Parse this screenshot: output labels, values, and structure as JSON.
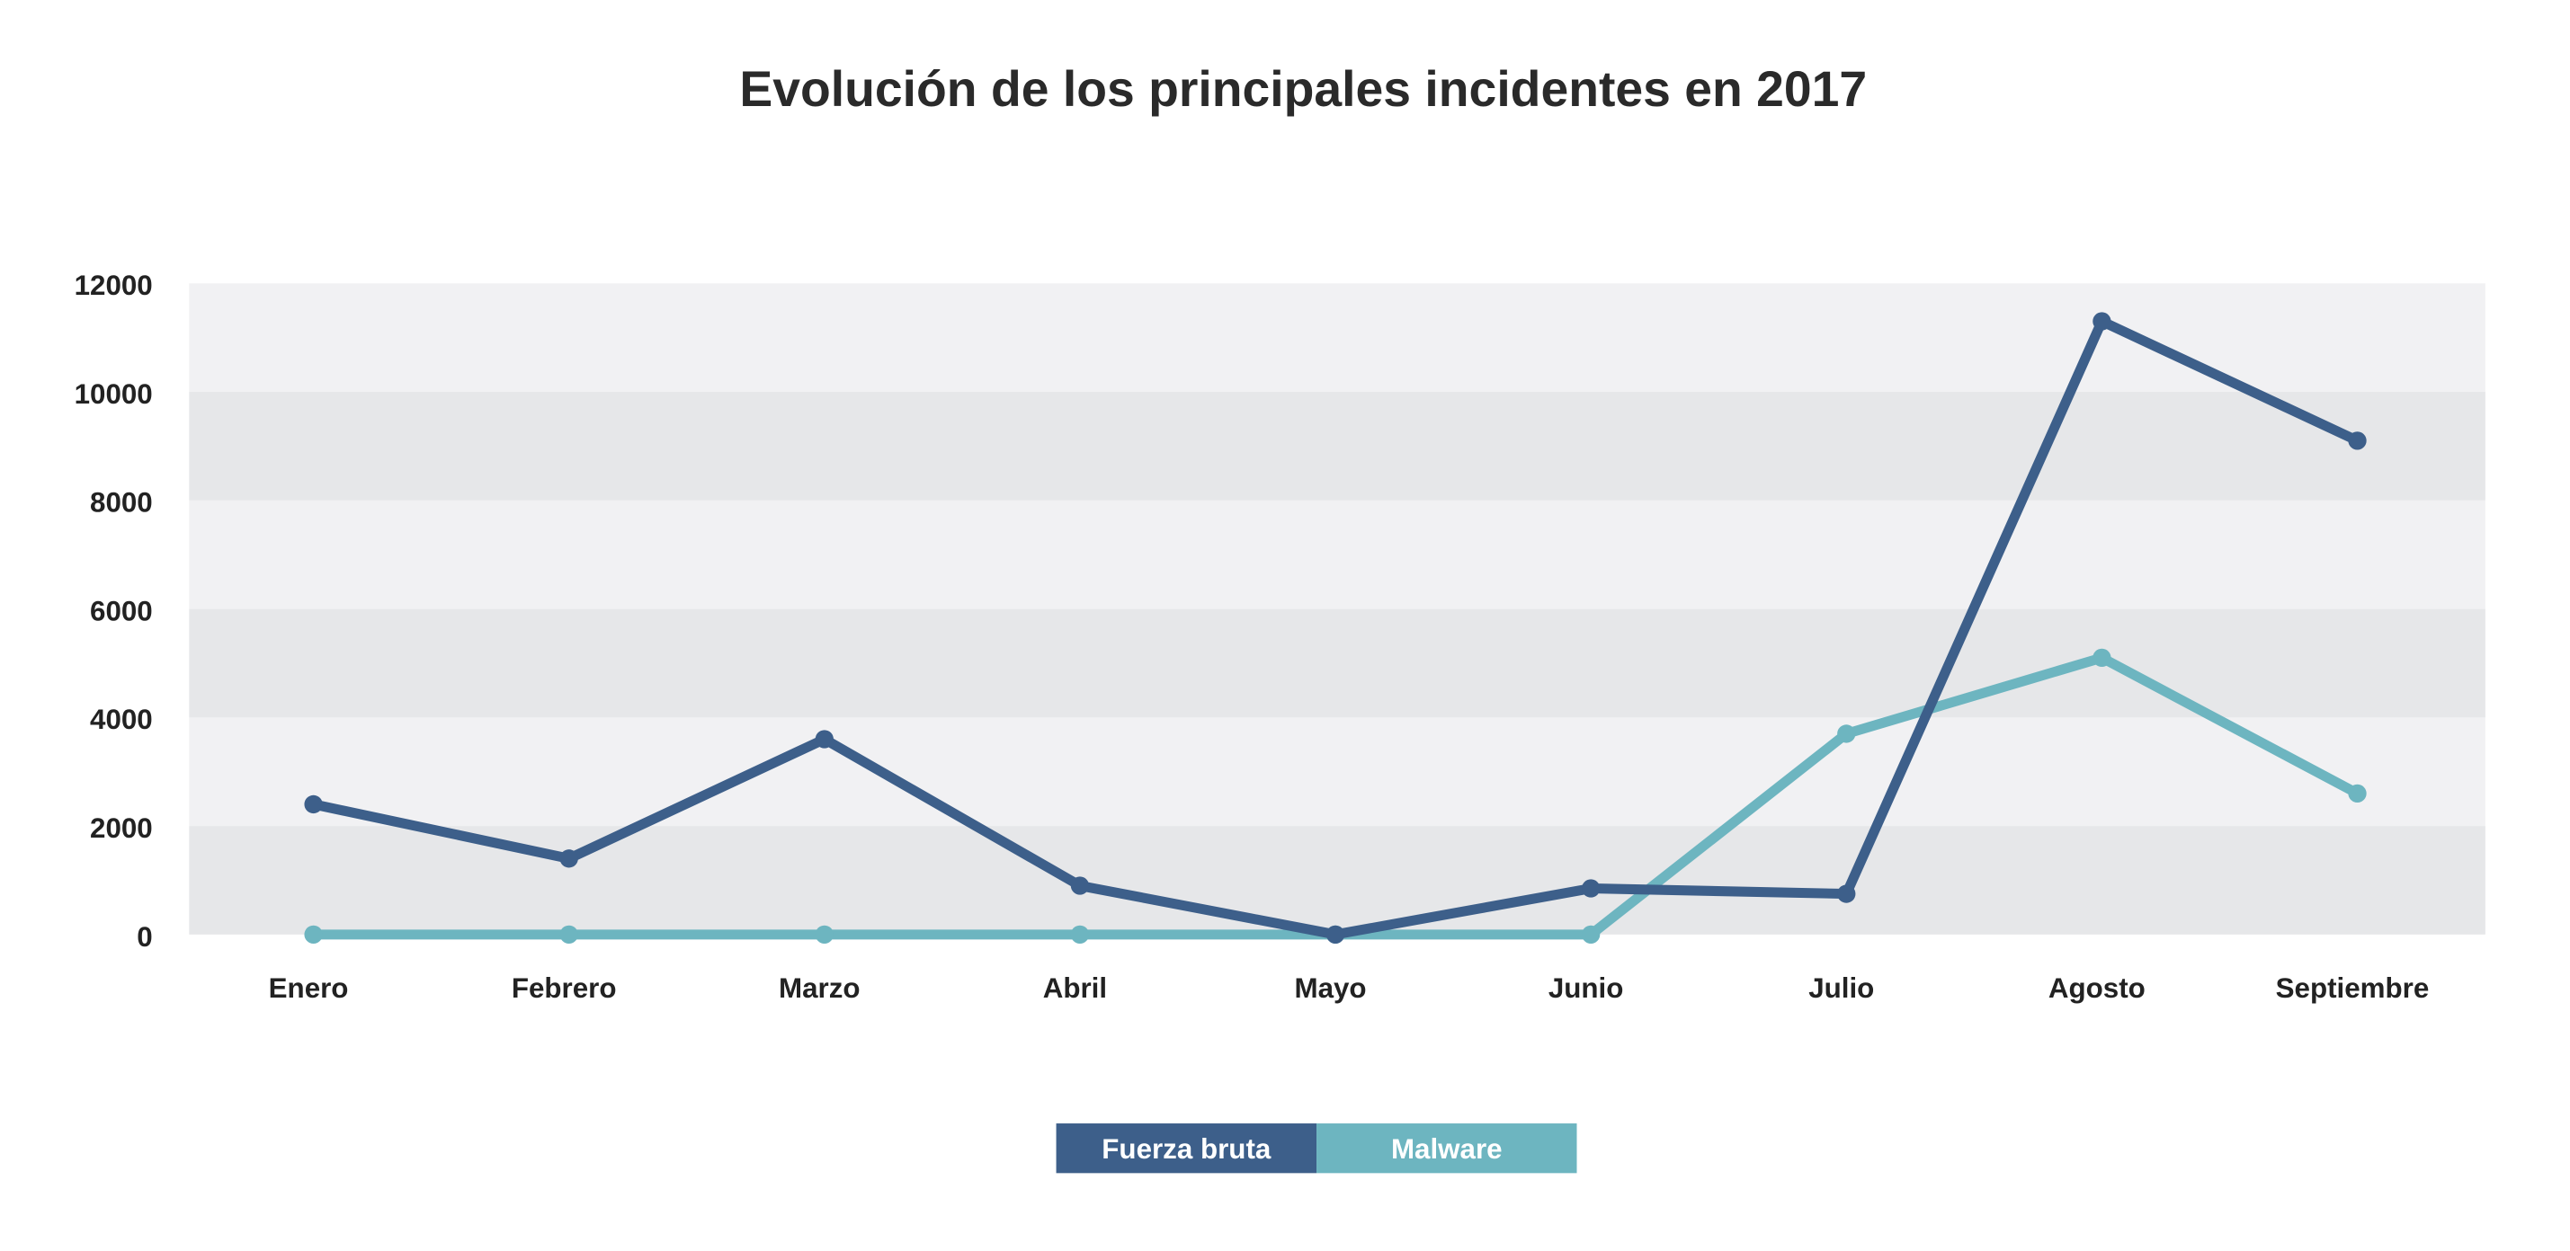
{
  "chart_data": {
    "type": "line",
    "title": "Evolución de los principales incidentes en 2017",
    "xlabel": "",
    "ylabel": "",
    "categories": [
      "Enero",
      "Febrero",
      "Marzo",
      "Abril",
      "Mayo",
      "Junio",
      "Julio",
      "Agosto",
      "Septiembre"
    ],
    "ylim": [
      0,
      12000
    ],
    "yticks": [
      "0",
      "2000",
      "4000",
      "6000",
      "8000",
      "10000",
      "12000"
    ],
    "grid": "alternating horizontal bands",
    "legend_position": "bottom-center",
    "series": [
      {
        "name": "Fuerza bruta",
        "color": "#3d5f8a",
        "values": [
          2400,
          1400,
          3600,
          900,
          0,
          850,
          750,
          11300,
          9100
        ]
      },
      {
        "name": "Malware",
        "color": "#6db5c0",
        "values": [
          0,
          0,
          0,
          0,
          0,
          0,
          3700,
          5100,
          2600
        ]
      }
    ],
    "band_colors": [
      "#e6e7e9",
      "#f1f1f3"
    ]
  }
}
